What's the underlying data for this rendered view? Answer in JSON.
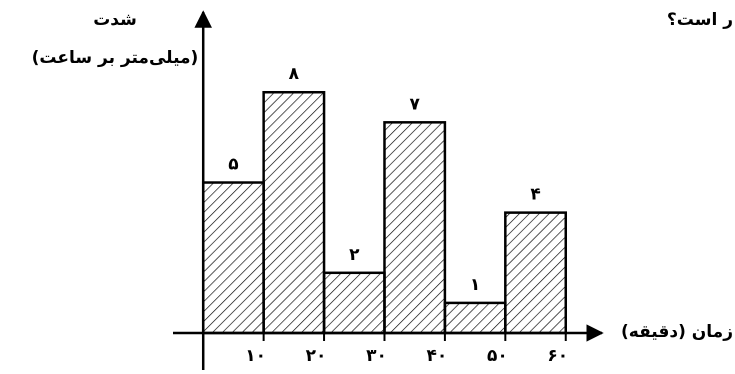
{
  "chart_data": {
    "type": "histogram",
    "annotation": "ر است؟",
    "ylabel": [
      "شدت",
      "(میلی‌متر بر ساعت)"
    ],
    "xlabel": "زمان (دقیقه)",
    "bins": [
      0,
      10,
      20,
      30,
      40,
      50,
      60
    ],
    "values": [
      5,
      8,
      2,
      7,
      1,
      4
    ],
    "value_labels": [
      "۵",
      "۸",
      "۲",
      "۷",
      "۱",
      "۴"
    ],
    "xlim": [
      -5,
      66
    ],
    "ylim": [
      0,
      10.5
    ],
    "xticks": [
      {
        "value": 10,
        "label": "۱۰"
      },
      {
        "value": 20,
        "label": "۲۰"
      },
      {
        "value": 30,
        "label": "۳۰"
      },
      {
        "value": 40,
        "label": "۴۰"
      },
      {
        "value": 50,
        "label": "۵۰"
      },
      {
        "value": 60,
        "label": "۶۰"
      }
    ],
    "color": "#000000",
    "hatch": true
  }
}
